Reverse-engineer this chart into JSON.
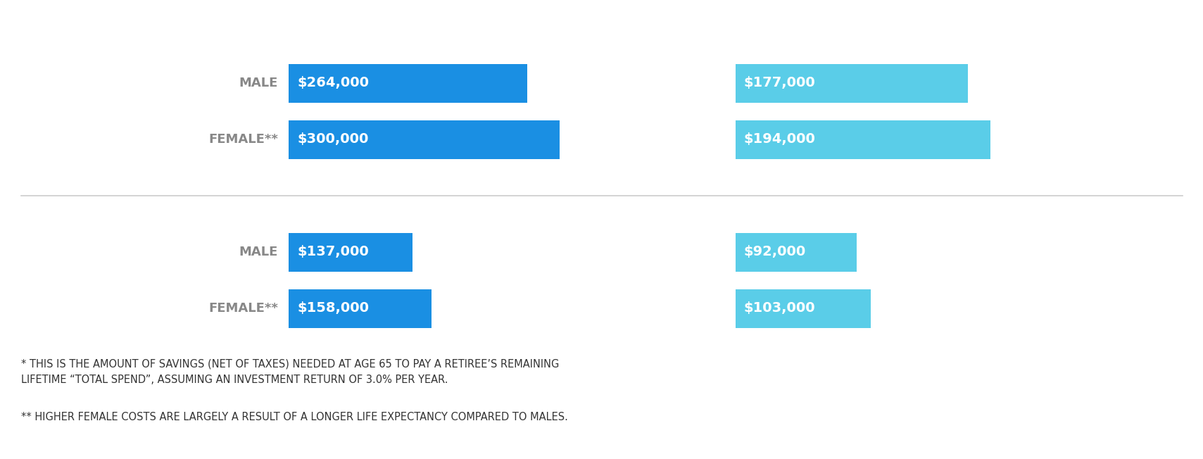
{
  "background_color": "#ffffff",
  "text_color_label": "#888888",
  "text_color_value": "#ffffff",
  "bar_color_blue": "#1a8fe3",
  "bar_color_light": "#5acde8",
  "divider_color": "#cccccc",
  "note_color": "#333333",
  "rows": [
    {
      "label": "MALE",
      "val1": 264000,
      "val2": 177000,
      "section": 0
    },
    {
      "label": "FEMALE**",
      "val1": 300000,
      "val2": 194000,
      "section": 0
    },
    {
      "label": "MALE",
      "val1": 137000,
      "val2": 92000,
      "section": 1
    },
    {
      "label": "FEMALE**",
      "val1": 158000,
      "val2": 103000,
      "section": 1
    }
  ],
  "max_val": 300000,
  "note1": "* THIS IS THE AMOUNT OF SAVINGS (NET OF TAXES) NEEDED AT AGE 65 TO PAY A RETIREE’S REMAINING\nLIFETIME “TOTAL SPEND”, ASSUMING AN INVESTMENT RETURN OF 3.0% PER YEAR.",
  "note2": "** HIGHER FEMALE COSTS ARE LARGELY A RESULT OF A LONGER LIFE EXPECTANCY COMPARED TO MALES.",
  "label_fontsize": 13,
  "value_fontsize": 14,
  "note_fontsize": 10.5
}
